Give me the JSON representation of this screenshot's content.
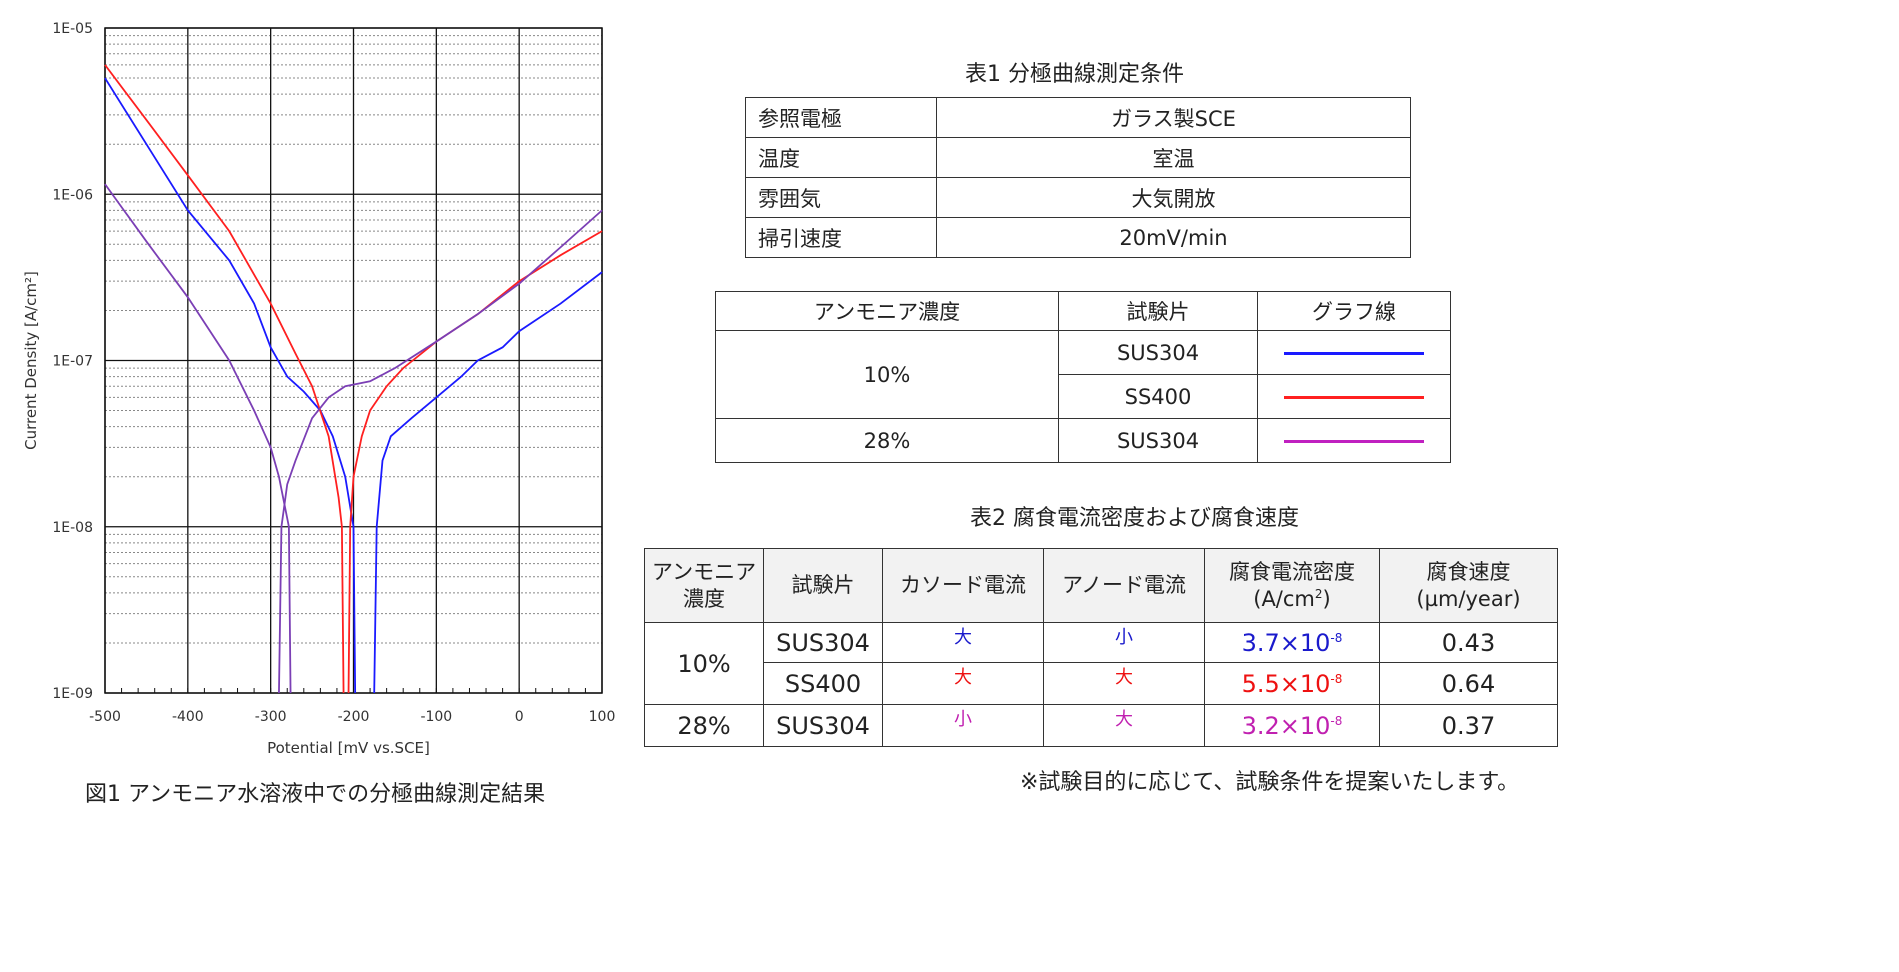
{
  "figure_caption": "図1 アンモニア水溶液中での分極曲線測定結果",
  "chart_data": {
    "type": "line",
    "xlabel": "Potential [mV vs.SCE]",
    "ylabel": "Current Density [A/cm²]",
    "xlim": [
      -500,
      100
    ],
    "ylim": [
      1e-09,
      1e-05
    ],
    "yscale": "log",
    "grid": true,
    "xticks": [
      "-500",
      "-400",
      "-300",
      "-200",
      "-100",
      "0",
      "100"
    ],
    "yticks": [
      "1E-05",
      "1E-06",
      "1E-07",
      "1E-08",
      "1E-09"
    ],
    "series": [
      {
        "color": "#1a1aff",
        "branches": [
          [
            [
              -500,
              5e-06
            ],
            [
              -450,
              2e-06
            ],
            [
              -400,
              8e-07
            ],
            [
              -350,
              4e-07
            ],
            [
              -320,
              2.2e-07
            ],
            [
              -300,
              1.2e-07
            ],
            [
              -280,
              8e-08
            ],
            [
              -260,
              6.5e-08
            ],
            [
              -240,
              5e-08
            ],
            [
              -225,
              3.5e-08
            ],
            [
              -210,
              2e-08
            ],
            [
              -200,
              1e-08
            ],
            [
              -198,
              1e-09
            ]
          ],
          [
            [
              -175,
              1e-09
            ],
            [
              -172,
              1e-08
            ],
            [
              -165,
              2.5e-08
            ],
            [
              -155,
              3.5e-08
            ],
            [
              -130,
              4.5e-08
            ],
            [
              -100,
              6e-08
            ],
            [
              -70,
              8e-08
            ],
            [
              -50,
              1e-07
            ],
            [
              -20,
              1.2e-07
            ],
            [
              0,
              1.5e-07
            ],
            [
              50,
              2.2e-07
            ],
            [
              100,
              3.4e-07
            ]
          ]
        ]
      },
      {
        "color": "#ff2020",
        "branches": [
          [
            [
              -500,
              6e-06
            ],
            [
              -450,
              2.8e-06
            ],
            [
              -400,
              1.3e-06
            ],
            [
              -350,
              6e-07
            ],
            [
              -300,
              2.2e-07
            ],
            [
              -270,
              1.1e-07
            ],
            [
              -250,
              7e-08
            ],
            [
              -230,
              3.5e-08
            ],
            [
              -218,
              1.5e-08
            ],
            [
              -214,
              1e-08
            ],
            [
              -212,
              1e-09
            ]
          ],
          [
            [
              -206,
              1e-09
            ],
            [
              -204,
              1e-08
            ],
            [
              -200,
              2e-08
            ],
            [
              -190,
              3.5e-08
            ],
            [
              -180,
              5e-08
            ],
            [
              -160,
              7e-08
            ],
            [
              -140,
              9e-08
            ],
            [
              -100,
              1.3e-07
            ],
            [
              -50,
              1.9e-07
            ],
            [
              0,
              3e-07
            ],
            [
              50,
              4.3e-07
            ],
            [
              100,
              6e-07
            ]
          ]
        ]
      },
      {
        "color": "#7b3fb5",
        "branches": [
          [
            [
              -500,
              1.15e-06
            ],
            [
              -450,
              5.2e-07
            ],
            [
              -400,
              2.4e-07
            ],
            [
              -350,
              1e-07
            ],
            [
              -320,
              5e-08
            ],
            [
              -300,
              3e-08
            ],
            [
              -290,
              2e-08
            ],
            [
              -278,
              1e-08
            ],
            [
              -276,
              1e-09
            ]
          ],
          [
            [
              -290,
              1e-09
            ],
            [
              -287,
              1e-08
            ],
            [
              -280,
              1.8e-08
            ],
            [
              -270,
              2.5e-08
            ],
            [
              -250,
              4.5e-08
            ],
            [
              -230,
              6e-08
            ],
            [
              -210,
              7e-08
            ],
            [
              -180,
              7.5e-08
            ],
            [
              -150,
              9e-08
            ],
            [
              -100,
              1.3e-07
            ],
            [
              -50,
              1.9e-07
            ],
            [
              0,
              2.9e-07
            ],
            [
              50,
              4.8e-07
            ],
            [
              100,
              8e-07
            ]
          ]
        ]
      }
    ]
  },
  "table1": {
    "title": "表1 分極曲線測定条件",
    "rows": [
      [
        "参照電極",
        "ガラス製SCE"
      ],
      [
        "温度",
        "室温"
      ],
      [
        "雰囲気",
        "大気開放"
      ],
      [
        "掃引速度",
        "20mV/min"
      ]
    ]
  },
  "legend_table": {
    "headers": [
      "アンモニア濃度",
      "試験片",
      "グラフ線"
    ],
    "groups": [
      {
        "concentration": "10%",
        "specimens": [
          {
            "name": "SUS304",
            "color": "#1a1aff"
          },
          {
            "name": "SS400",
            "color": "#ff2020"
          }
        ]
      },
      {
        "concentration": "28%",
        "specimens": [
          {
            "name": "SUS304",
            "color": "#c020c0"
          }
        ]
      }
    ]
  },
  "table2": {
    "title": "表2 腐食電流密度および腐食速度",
    "headers": [
      "アンモニア濃度",
      "試験片",
      "カソード電流",
      "アノード電流",
      "腐食電流密度",
      "(A/cm",
      "2",
      ")",
      "腐食速度",
      "(µm/year)"
    ],
    "header_line1": [
      "アンモニア",
      "濃度"
    ],
    "rows": [
      {
        "conc": "10%",
        "specimen": "SUS304",
        "cathode": "大",
        "anode": "小",
        "density_base": "3.7×10",
        "density_exp": "-8",
        "rate": "0.43",
        "color": "#1a1acc"
      },
      {
        "conc": "",
        "specimen": "SS400",
        "cathode": "大",
        "anode": "大",
        "density_base": "5.5×10",
        "density_exp": "-8",
        "rate": "0.64",
        "color": "#ee1111"
      },
      {
        "conc": "28%",
        "specimen": "SUS304",
        "cathode": "小",
        "anode": "大",
        "density_base": "3.2×10",
        "density_exp": "-8",
        "rate": "0.37",
        "color": "#c020b0"
      }
    ]
  },
  "footnote": "※試験目的に応じて、試験条件を提案いたします。"
}
